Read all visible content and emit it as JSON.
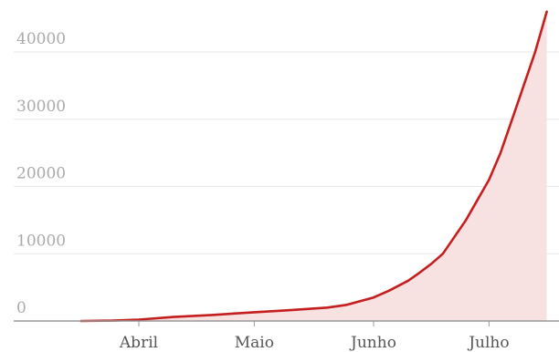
{
  "chart_data": {
    "type": "area",
    "title": "",
    "xlabel": "",
    "ylabel": "",
    "x_tick_labels": [
      "Abril",
      "Maio",
      "Junho",
      "Julho"
    ],
    "y_ticks": [
      0,
      10000,
      20000,
      30000,
      40000
    ],
    "ylim": [
      0,
      45000
    ],
    "grid": true,
    "legend": "none",
    "colors": {
      "line": "#c41e1e",
      "fill": "#f7e1e1"
    },
    "series": [
      {
        "values": [
          {
            "x": "2020-03-17",
            "y": 0
          },
          {
            "x": "2020-03-25",
            "y": 50
          },
          {
            "x": "2020-04-01",
            "y": 200
          },
          {
            "x": "2020-04-10",
            "y": 600
          },
          {
            "x": "2020-04-20",
            "y": 900
          },
          {
            "x": "2020-05-01",
            "y": 1300
          },
          {
            "x": "2020-05-10",
            "y": 1600
          },
          {
            "x": "2020-05-20",
            "y": 2000
          },
          {
            "x": "2020-05-25",
            "y": 2400
          },
          {
            "x": "2020-06-01",
            "y": 3500
          },
          {
            "x": "2020-06-05",
            "y": 4500
          },
          {
            "x": "2020-06-10",
            "y": 6000
          },
          {
            "x": "2020-06-13",
            "y": 7200
          },
          {
            "x": "2020-06-16",
            "y": 8500
          },
          {
            "x": "2020-06-19",
            "y": 10000
          },
          {
            "x": "2020-06-22",
            "y": 12500
          },
          {
            "x": "2020-06-25",
            "y": 15000
          },
          {
            "x": "2020-06-28",
            "y": 18000
          },
          {
            "x": "2020-07-01",
            "y": 21000
          },
          {
            "x": "2020-07-04",
            "y": 25000
          },
          {
            "x": "2020-07-07",
            "y": 30000
          },
          {
            "x": "2020-07-10",
            "y": 35000
          },
          {
            "x": "2020-07-13",
            "y": 40000
          },
          {
            "x": "2020-07-16",
            "y": 46000
          }
        ]
      }
    ]
  }
}
